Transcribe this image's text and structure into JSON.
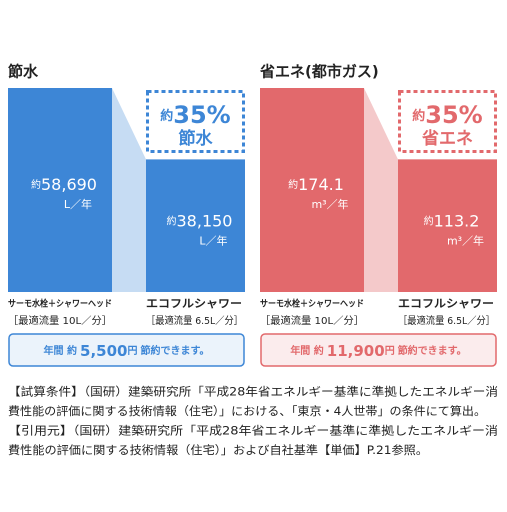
{
  "chart_data": [
    {
      "type": "bar",
      "title": "節水",
      "categories": [
        "サーモ水栓＋シャワーヘッド",
        "エコフルシャワー"
      ],
      "category_notes": [
        "［最適流量 10L／分］",
        "［最適流量 6.5L／分］"
      ],
      "values": [
        58690,
        38150
      ],
      "value_labels": [
        "58,690",
        "38,150"
      ],
      "value_prefix": "約",
      "unit": "L／年",
      "color": "#3d86d6",
      "light_color": "#c6dcf3",
      "reduction": {
        "prefix": "約",
        "value": 35,
        "label": "35%",
        "text": "節水"
      },
      "saving": {
        "before": "年間 約",
        "value": 5500,
        "label": "5,500",
        "unit": "円",
        "after": "節約できます。"
      }
    },
    {
      "type": "bar",
      "title": "省エネ(都市ガス)",
      "categories": [
        "サーモ水栓＋シャワーヘッド",
        "エコフルシャワー"
      ],
      "category_notes": [
        "［最適流量 10L／分］",
        "［最適流量 6.5L／分］"
      ],
      "values": [
        174.1,
        113.2
      ],
      "value_prefix": "約",
      "unit": "m³／年",
      "color": "#e2696c",
      "light_color": "#f4c9ca",
      "reduction": {
        "prefix": "約",
        "value": 35,
        "label": "35%",
        "text": "省エネ"
      },
      "saving": {
        "before": "年間 約",
        "value": 11900,
        "label": "11,900",
        "unit": "円",
        "after": "節約できます。"
      }
    }
  ],
  "notes": [
    "【試算条件】（国研）建築研究所「平成28年省エネルギー基準に準拠したエネルギー消",
    "費性能の評価に関する技術情報（住宅）」における、「東京・4人世帯」の条件にて算出。",
    "【引用元】（国研）建築研究所「平成28年省エネルギー基準に準拠したエネルギー消",
    "費性能の評価に関する技術情報（住宅）」および自社基準【単価】P.21参照。"
  ]
}
